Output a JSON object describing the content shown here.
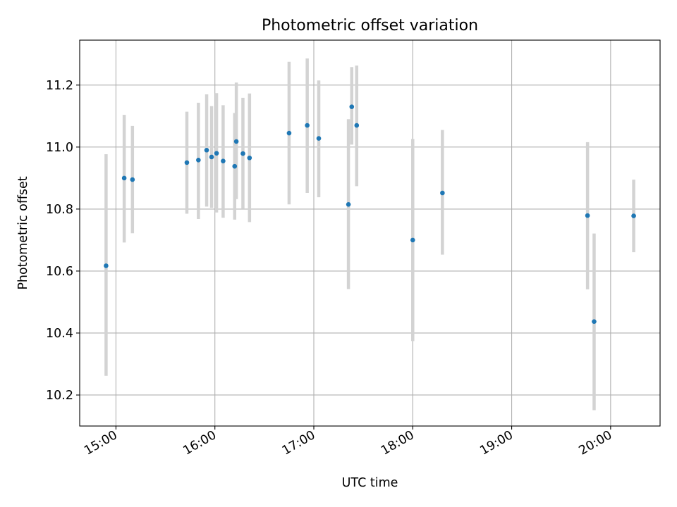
{
  "chart_data": {
    "type": "scatter",
    "title": "Photometric offset variation",
    "xlabel": "UTC time",
    "ylabel": "Photometric offset",
    "x_axis_kind": "time",
    "xlim": [
      "14:38",
      "20:30"
    ],
    "ylim": [
      10.1,
      11.345
    ],
    "xticks": [
      "15:00",
      "16:00",
      "17:00",
      "18:00",
      "19:00",
      "20:00"
    ],
    "yticks": [
      10.2,
      10.4,
      10.6,
      10.8,
      11.0,
      11.2
    ],
    "ytick_labels": [
      "10.2",
      "10.4",
      "10.6",
      "10.8",
      "11.0",
      "11.2"
    ],
    "grid": true,
    "legend": "none",
    "point_color": "#1f77b4",
    "errorbar_color": "#d3d3d3",
    "series": [
      {
        "x": [
          "14:54",
          "15:05",
          "15:10",
          "15:43",
          "15:50",
          "15:55",
          "15:58",
          "16:01",
          "16:05",
          "16:12",
          "16:13",
          "16:17",
          "16:21",
          "16:45",
          "16:56",
          "17:03",
          "17:21",
          "17:23",
          "17:26",
          "18:00",
          "18:18",
          "19:46",
          "19:50",
          "20:14"
        ],
        "y": [
          10.617,
          10.9,
          10.895,
          10.95,
          10.958,
          10.99,
          10.968,
          10.98,
          10.955,
          10.938,
          11.018,
          10.979,
          10.965,
          11.045,
          11.07,
          11.028,
          10.815,
          11.13,
          11.07,
          10.7,
          10.852,
          10.779,
          10.437,
          10.778
        ],
        "err_low": [
          10.262,
          10.692,
          10.722,
          10.785,
          10.768,
          10.808,
          10.804,
          10.789,
          10.772,
          10.766,
          10.832,
          10.8,
          10.758,
          10.815,
          10.852,
          10.838,
          10.542,
          11.008,
          10.874,
          10.374,
          10.653,
          10.541,
          10.151,
          10.661
        ],
        "err_high": [
          10.977,
          11.104,
          11.068,
          11.114,
          11.143,
          11.17,
          11.132,
          11.174,
          11.135,
          11.11,
          11.208,
          11.159,
          11.173,
          11.275,
          11.286,
          11.215,
          11.09,
          11.258,
          11.263,
          11.026,
          11.055,
          11.016,
          10.721,
          10.895
        ]
      }
    ]
  }
}
